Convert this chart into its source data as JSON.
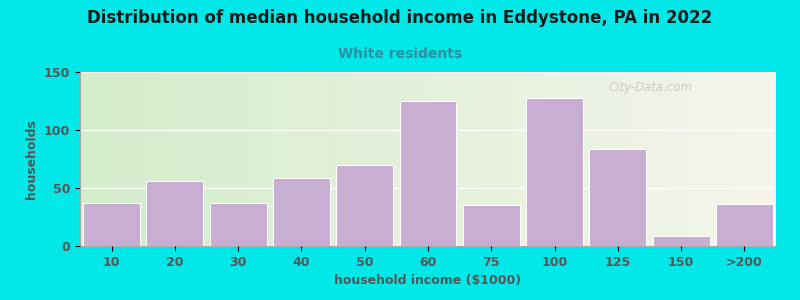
{
  "title": "Distribution of median household income in Eddystone, PA in 2022",
  "subtitle": "White residents",
  "xlabel": "household income ($1000)",
  "ylabel": "households",
  "categories": [
    "10",
    "20",
    "30",
    "40",
    "50",
    "60",
    "75",
    "100",
    "125",
    "150",
    ">200"
  ],
  "values": [
    37,
    56,
    37,
    59,
    70,
    125,
    35,
    128,
    84,
    9,
    36
  ],
  "bar_color": "#c9aed4",
  "bar_edge_color": "#ffffff",
  "background_outer": "#00e8e8",
  "background_inner_left": "#d4edcb",
  "background_inner_right": "#f5f5ec",
  "title_color": "#1a1a1a",
  "subtitle_color": "#2e8fa0",
  "axis_label_color": "#555555",
  "tick_label_color": "#555555",
  "watermark_text": "City-Data.com",
  "ylim": [
    0,
    150
  ],
  "yticks": [
    0,
    50,
    100,
    150
  ],
  "title_fontsize": 12,
  "subtitle_fontsize": 10,
  "label_fontsize": 9,
  "tick_fontsize": 9
}
